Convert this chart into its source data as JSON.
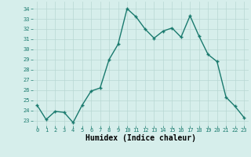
{
  "x": [
    0,
    1,
    2,
    3,
    4,
    5,
    6,
    7,
    8,
    9,
    10,
    11,
    12,
    13,
    14,
    15,
    16,
    17,
    18,
    19,
    20,
    21,
    22,
    23
  ],
  "y": [
    24.5,
    23.1,
    23.9,
    23.8,
    22.8,
    24.5,
    25.9,
    26.2,
    29.0,
    30.5,
    34.0,
    33.2,
    32.0,
    31.1,
    31.8,
    32.1,
    31.2,
    33.3,
    31.3,
    29.5,
    28.8,
    25.3,
    24.4,
    23.3
  ],
  "line_color": "#1a7a6e",
  "marker": "+",
  "marker_size": 3.5,
  "bg_color": "#d6eeeb",
  "grid_color": "#b8d8d4",
  "xlabel": "Humidex (Indice chaleur)",
  "ylim": [
    22.5,
    34.7
  ],
  "xlim": [
    -0.5,
    23.5
  ],
  "yticks": [
    23,
    24,
    25,
    26,
    27,
    28,
    29,
    30,
    31,
    32,
    33,
    34
  ],
  "xticks": [
    0,
    1,
    2,
    3,
    4,
    5,
    6,
    7,
    8,
    9,
    10,
    11,
    12,
    13,
    14,
    15,
    16,
    17,
    18,
    19,
    20,
    21,
    22,
    23
  ],
  "tick_label_size": 5.0,
  "xlabel_size": 7.0,
  "line_width": 1.0,
  "marker_color": "#1a7a6e"
}
